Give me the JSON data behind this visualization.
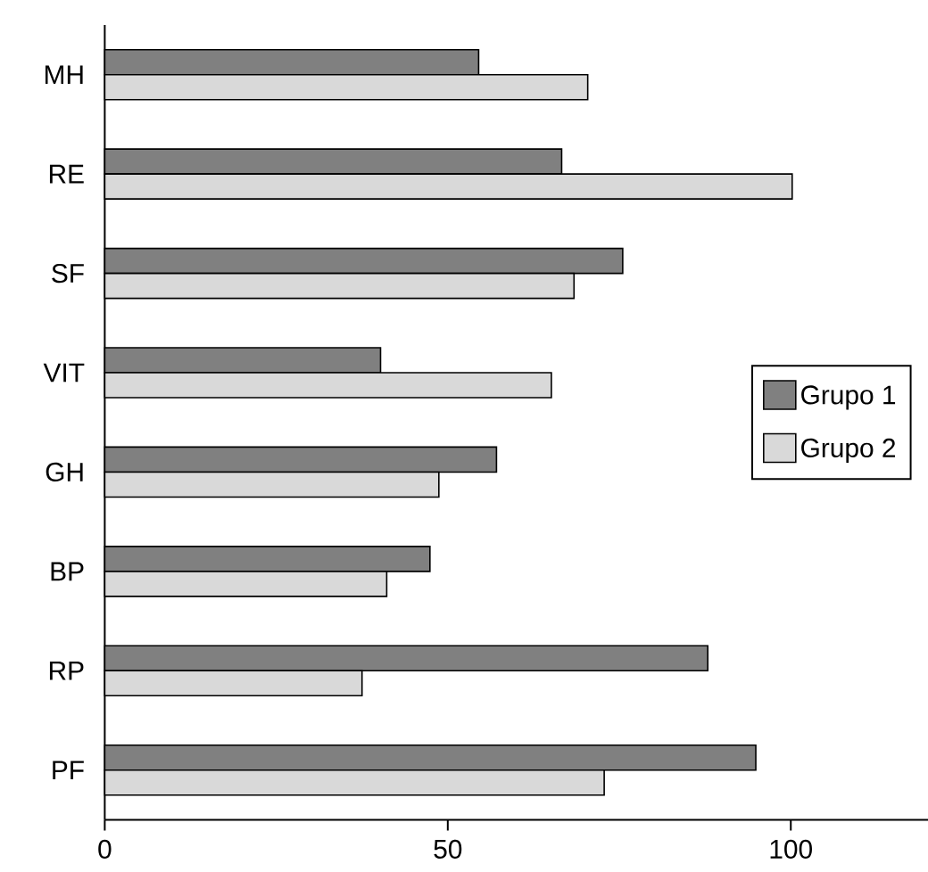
{
  "chart_data": {
    "type": "bar",
    "orientation": "horizontal",
    "categories": [
      "MH",
      "RE",
      "SF",
      "VIT",
      "GH",
      "BP",
      "RP",
      "PF"
    ],
    "series": [
      {
        "name": "Grupo 1",
        "color": "#808080",
        "values": [
          54.5,
          66.6,
          75.5,
          40.2,
          57.1,
          47.4,
          87.9,
          94.9
        ]
      },
      {
        "name": "Grupo 2",
        "color": "#d9d9d9",
        "values": [
          70.4,
          100.2,
          68.4,
          65.1,
          48.7,
          41.1,
          37.5,
          72.8
        ]
      }
    ],
    "xlim": [
      0,
      120
    ],
    "xticks": [
      0,
      50,
      100
    ],
    "grid": false,
    "legend": "right"
  }
}
